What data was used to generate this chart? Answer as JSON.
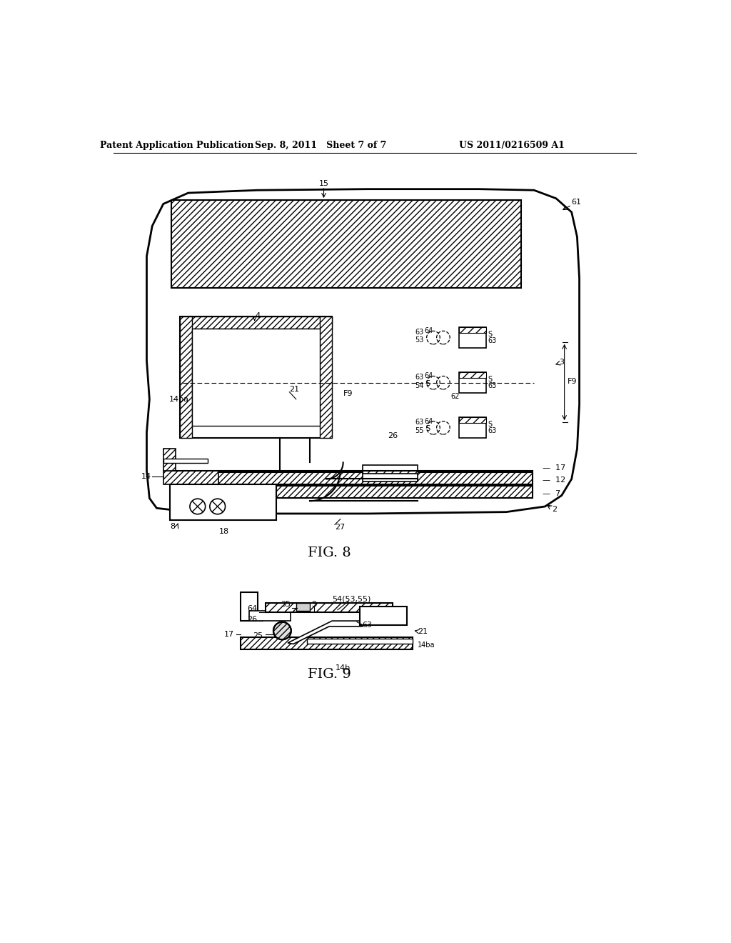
{
  "bg_color": "#ffffff",
  "line_color": "#000000",
  "header_left": "Patent Application Publication",
  "header_mid": "Sep. 8, 2011   Sheet 7 of 7",
  "header_right": "US 2011/0216509 A1",
  "fig8_label": "FIG. 8",
  "fig9_label": "FIG. 9",
  "header_font_size": 9,
  "label_font_size": 8,
  "caption_font_size": 14
}
